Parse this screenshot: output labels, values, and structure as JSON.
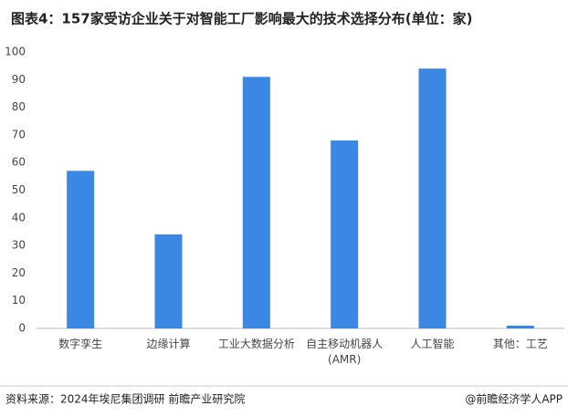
{
  "chart_data": {
    "type": "bar",
    "title": "图表4：157家受访企业关于对智能工厂影响最大的技术选择分布(单位：家)",
    "categories": [
      "数字孪生",
      "边缘计算",
      "工业大数据分析",
      "自主移动机器人\n(AMR)",
      "人工智能",
      "其他：工艺"
    ],
    "values": [
      57,
      34,
      91,
      68,
      94,
      1
    ],
    "color": "#3a87e4",
    "ylim": [
      0,
      100
    ],
    "yticks": [
      0,
      10,
      20,
      30,
      40,
      50,
      60,
      70,
      80,
      90,
      100
    ],
    "grid": false,
    "source": "资料来源：2024年埃尼集团调研 前瞻产业研究院",
    "credit": "@前瞻经济学人APP"
  }
}
